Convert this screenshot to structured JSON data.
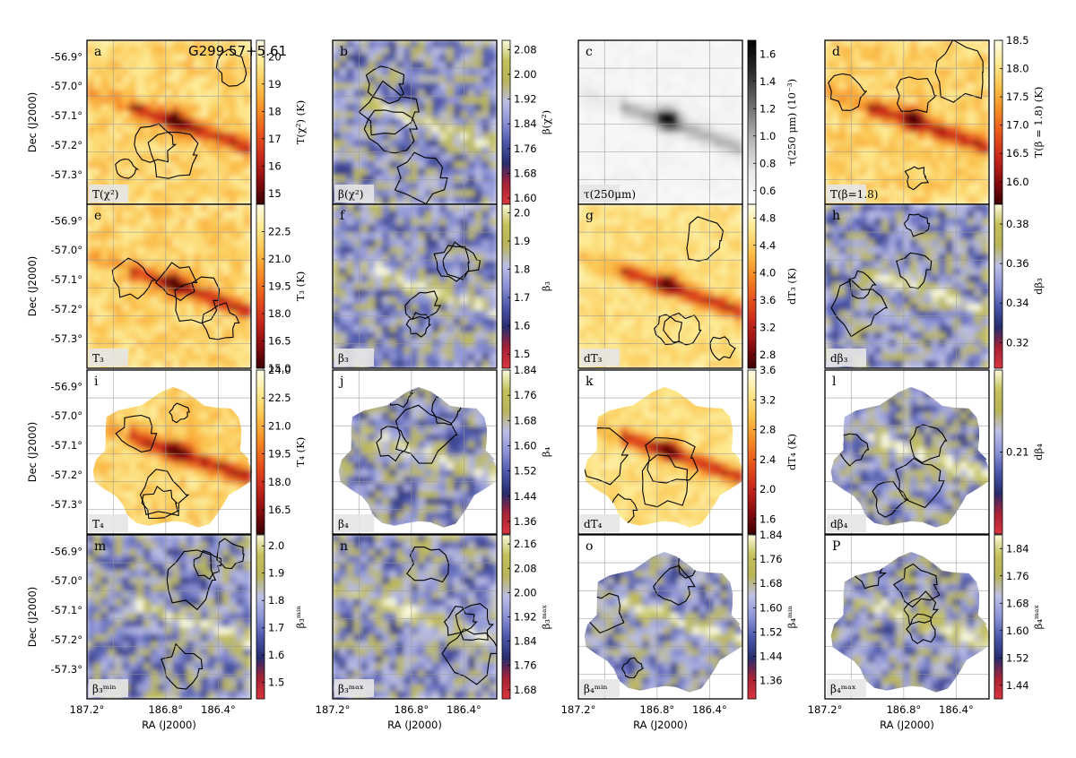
{
  "figure": {
    "source_label": "G299.57+5.61",
    "ra_ticks": [
      "187.2°",
      "186.8°",
      "186.4°"
    ],
    "dec_ticks": [
      "-56.9°",
      "-57.0°",
      "-57.1°",
      "-57.2°",
      "-57.3°"
    ],
    "xlabel": "RA (J2000)",
    "ylabel": "Dec (J2000)"
  },
  "chart_data": [
    {
      "type": "heatmap",
      "letter": "a",
      "corner_label": "T(χ²)",
      "colorbar_label": "T(χ²) (K)",
      "colormap": "hot",
      "colorbar_ticks": [
        "20",
        "19",
        "18",
        "17",
        "16",
        "15"
      ],
      "colorbar_range": [
        14.6,
        20.6
      ],
      "coverage": "square"
    },
    {
      "type": "heatmap",
      "letter": "b",
      "corner_label": "β(χ²)",
      "colorbar_label": "β(χ²)",
      "colormap": "diverging",
      "colorbar_ticks": [
        "2.08",
        "2.00",
        "1.92",
        "1.84",
        "1.76",
        "1.68",
        "1.60"
      ],
      "colorbar_range": [
        1.58,
        2.11
      ],
      "coverage": "square"
    },
    {
      "type": "heatmap",
      "letter": "c",
      "corner_label": "τ(250μm)",
      "colorbar_label": "τ(250 μm) (10⁻³)",
      "colormap": "gray",
      "colorbar_ticks": [
        "1.6",
        "1.4",
        "1.2",
        "1.0",
        "0.8",
        "0.6"
      ],
      "colorbar_range": [
        0.5,
        1.7
      ],
      "coverage": "square"
    },
    {
      "type": "heatmap",
      "letter": "d",
      "corner_label": "T(β=1.8)",
      "colorbar_label": "T(β = 1.8) (K)",
      "colormap": "hot",
      "colorbar_ticks": [
        "18.5",
        "18.0",
        "17.5",
        "17.0",
        "16.5",
        "16.0"
      ],
      "colorbar_range": [
        15.6,
        18.5
      ],
      "coverage": "square"
    },
    {
      "type": "heatmap",
      "letter": "e",
      "corner_label": "T₃",
      "colorbar_label": "T₃ (K)",
      "colormap": "hot",
      "colorbar_ticks": [
        "22.5",
        "21.0",
        "19.5",
        "18.0",
        "16.5",
        "15.0"
      ],
      "colorbar_range": [
        15.0,
        24.0
      ],
      "coverage": "square"
    },
    {
      "type": "heatmap",
      "letter": "f",
      "corner_label": "β₃",
      "colorbar_label": "β₃",
      "colormap": "diverging",
      "colorbar_ticks": [
        "2.0",
        "1.9",
        "1.8",
        "1.7",
        "1.6",
        "1.5"
      ],
      "colorbar_range": [
        1.45,
        2.03
      ],
      "coverage": "square"
    },
    {
      "type": "heatmap",
      "letter": "g",
      "corner_label": "dT₃",
      "colorbar_label": "dT₃ (K)",
      "colormap": "hot",
      "colorbar_ticks": [
        "4.8",
        "4.4",
        "4.0",
        "3.6",
        "3.2",
        "2.8"
      ],
      "colorbar_range": [
        2.6,
        5.0
      ],
      "coverage": "square"
    },
    {
      "type": "heatmap",
      "letter": "h",
      "corner_label": "dβ₃",
      "colorbar_label": "dβ₃",
      "colormap": "diverging",
      "colorbar_ticks": [
        "0.38",
        "0.36",
        "0.34",
        "0.32"
      ],
      "colorbar_range": [
        0.307,
        0.39
      ],
      "coverage": "square"
    },
    {
      "type": "heatmap",
      "letter": "i",
      "corner_label": "T₄",
      "colorbar_label": "T₄ (K)",
      "colormap": "hot",
      "colorbar_ticks": [
        "24.0",
        "22.5",
        "21.0",
        "19.5",
        "18.0",
        "16.5"
      ],
      "colorbar_range": [
        15.2,
        24.0
      ],
      "coverage": "round"
    },
    {
      "type": "heatmap",
      "letter": "j",
      "corner_label": "β₄",
      "colorbar_label": "β₄",
      "colormap": "diverging",
      "colorbar_ticks": [
        "1.84",
        "1.76",
        "1.68",
        "1.60",
        "1.52",
        "1.44",
        "1.36"
      ],
      "colorbar_range": [
        1.32,
        1.84
      ],
      "coverage": "round"
    },
    {
      "type": "heatmap",
      "letter": "k",
      "corner_label": "dT₄",
      "colorbar_label": "dT₄ (K)",
      "colormap": "hot",
      "colorbar_ticks": [
        "3.6",
        "3.2",
        "2.8",
        "2.4",
        "2.0",
        "1.6"
      ],
      "colorbar_range": [
        1.4,
        3.6
      ],
      "coverage": "round"
    },
    {
      "type": "heatmap",
      "letter": "l",
      "corner_label": "dβ₄",
      "colorbar_label": "dβ₄",
      "colormap": "diverging",
      "colorbar_ticks": [
        "0.21"
      ],
      "colorbar_range": [
        0.185,
        0.235
      ],
      "coverage": "round"
    },
    {
      "type": "heatmap",
      "letter": "m",
      "corner_label": "β₃ᵐⁱⁿ",
      "colorbar_label": "β₃ᵐⁱⁿ",
      "colormap": "diverging",
      "colorbar_ticks": [
        "2.0",
        "1.9",
        "1.8",
        "1.7",
        "1.6",
        "1.5"
      ],
      "colorbar_range": [
        1.44,
        2.04
      ],
      "coverage": "square"
    },
    {
      "type": "heatmap",
      "letter": "n",
      "corner_label": "β₃ᵐᵃˣ",
      "colorbar_label": "β₃ᵐᵃˣ",
      "colormap": "diverging",
      "colorbar_ticks": [
        "2.16",
        "2.08",
        "2.00",
        "1.92",
        "1.84",
        "1.76",
        "1.68"
      ],
      "colorbar_range": [
        1.65,
        2.19
      ],
      "coverage": "square"
    },
    {
      "type": "heatmap",
      "letter": "o",
      "corner_label": "β₄ᵐⁱⁿ",
      "colorbar_label": "β₄ᵐⁱⁿ",
      "colormap": "diverging",
      "colorbar_ticks": [
        "1.84",
        "1.76",
        "1.68",
        "1.60",
        "1.52",
        "1.44",
        "1.36"
      ],
      "colorbar_range": [
        1.3,
        1.84
      ],
      "coverage": "round"
    },
    {
      "type": "heatmap",
      "letter": "P",
      "corner_label": "β₄ᵐᵃˣ",
      "colorbar_label": "β₄ᵐᵃˣ",
      "colormap": "diverging",
      "colorbar_ticks": [
        "1.84",
        "1.76",
        "1.68",
        "1.60",
        "1.52",
        "1.44"
      ],
      "colorbar_range": [
        1.4,
        1.88
      ],
      "coverage": "round"
    }
  ]
}
